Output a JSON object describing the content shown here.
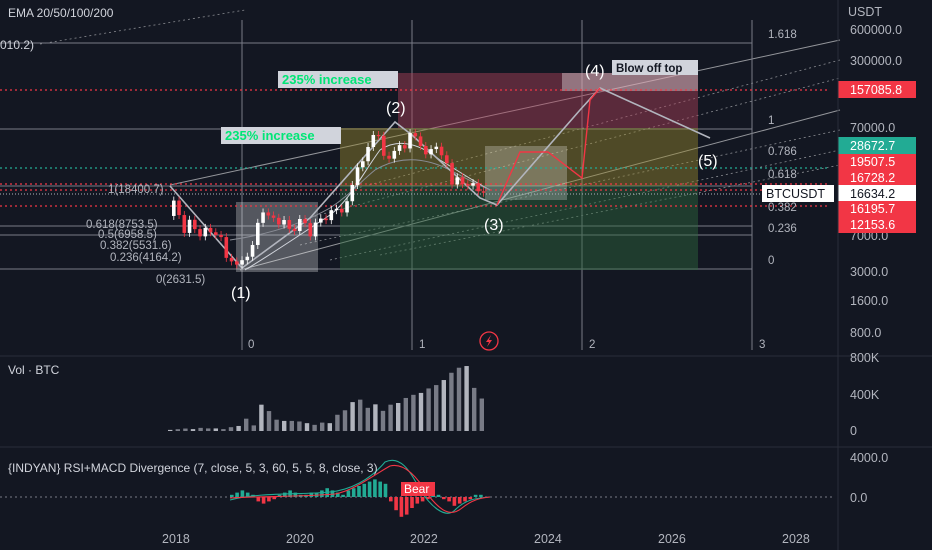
{
  "header": {
    "ema_label": "EMA 20/50/100/200",
    "vol_label": "Vol · BTC",
    "indicator_label": "{INDYAN} RSI+MACD Divergence (7, close, 5, 3, 60, 5, 5, 8, close, 3)",
    "left_clip": "010.2)"
  },
  "price_axis": {
    "unit": "USDT",
    "ticks": [
      "600000.0",
      "300000.0",
      "70000.0",
      "7000.0",
      "3000.0",
      "1600.0",
      "800.0"
    ]
  },
  "price_tags": [
    {
      "text": "157085.8",
      "color": "#f23645"
    },
    {
      "text": "28672.7",
      "color": "#22ab94"
    },
    {
      "text": "19507.5",
      "color": "#f23645"
    },
    {
      "text": "16728.2",
      "color": "#f23645"
    },
    {
      "text": "BTCUSDT",
      "color": "#ffffff"
    },
    {
      "text": "16634.2",
      "color": "#ffffff"
    },
    {
      "text": "16195.7",
      "color": "#f23645"
    },
    {
      "text": "12153.6",
      "color": "#f23645"
    }
  ],
  "fib_right": [
    "1.618",
    "1",
    "0.786",
    "0.618",
    "0.382",
    "0.236",
    "0"
  ],
  "fib_left": [
    "1(18400.7)",
    "0.618(8753.5)",
    "0.5(6958.5)",
    "0.382(5531.6)",
    "0.236(4164.2)",
    "0(2631.5)"
  ],
  "time_fib": [
    "0",
    "1",
    "2",
    "3"
  ],
  "annotations": {
    "increase_1": "235% increase",
    "increase_2": "235% increase",
    "blow_off": "Blow off top",
    "bear": "Bear"
  },
  "waves": [
    "(1)",
    "(2)",
    "(3)",
    "(4)",
    "(5)"
  ],
  "vol_axis": [
    "800K",
    "400K",
    "0"
  ],
  "ind_axis": [
    "4000.0",
    "0.0"
  ],
  "x_axis": [
    "2018",
    "2020",
    "2022",
    "2024",
    "2026",
    "2028"
  ],
  "colors": {
    "background": "#131722",
    "up": "#ffffff",
    "down": "#f23645",
    "green": "#22ab94",
    "label_green": "#00e676"
  },
  "chart_data": {
    "type": "candlestick",
    "symbol": "BTCUSDT",
    "scale": "log",
    "last_price": 16634.2,
    "wave_targets": {
      "wave_4_target": 157085.8
    },
    "candles": [
      [
        10000,
        14000
      ],
      [
        14000,
        10200
      ],
      [
        10200,
        6900
      ],
      [
        6900,
        9200
      ],
      [
        9200,
        7500
      ],
      [
        7500,
        6400
      ],
      [
        6400,
        7700
      ],
      [
        7700,
        7000
      ],
      [
        7000,
        6600
      ],
      [
        6600,
        6300
      ],
      [
        6300,
        4000
      ],
      [
        4000,
        3700
      ],
      [
        3700,
        3450
      ],
      [
        3450,
        3800
      ],
      [
        3800,
        4100
      ],
      [
        4100,
        5300
      ],
      [
        5300,
        8600
      ],
      [
        8600,
        10800
      ],
      [
        10800,
        10100
      ],
      [
        10100,
        9600
      ],
      [
        9600,
        8300
      ],
      [
        8300,
        9150
      ],
      [
        9150,
        7550
      ],
      [
        7550,
        7200
      ],
      [
        7200,
        9350
      ],
      [
        9350,
        8550
      ],
      [
        8550,
        6400
      ],
      [
        6400,
        8650
      ],
      [
        8650,
        9450
      ],
      [
        9450,
        9130
      ],
      [
        9130,
        11350
      ],
      [
        11350,
        11700
      ],
      [
        11700,
        10800
      ],
      [
        10800,
        13800
      ],
      [
        13800,
        19700
      ],
      [
        19700,
        29000
      ],
      [
        29000,
        33100
      ],
      [
        33100,
        45200
      ],
      [
        45200,
        58800
      ],
      [
        58800,
        57700
      ],
      [
        57700,
        37300
      ],
      [
        37300,
        35000
      ],
      [
        35000,
        41500
      ],
      [
        41500,
        47100
      ],
      [
        47100,
        43800
      ],
      [
        43800,
        61300
      ],
      [
        61300,
        57000
      ],
      [
        57000,
        46200
      ],
      [
        46200,
        38500
      ],
      [
        38500,
        43200
      ],
      [
        43200,
        45500
      ],
      [
        45500,
        37700
      ],
      [
        37700,
        31800
      ],
      [
        31800,
        19900
      ],
      [
        19900,
        23300
      ],
      [
        23300,
        20050
      ],
      [
        20050,
        19430
      ],
      [
        19430,
        20500
      ],
      [
        20500,
        17150
      ],
      [
        17150,
        16634
      ]
    ],
    "volume": [
      [
        0,
        0.02
      ],
      [
        0.01,
        0.03
      ],
      [
        0.02,
        0.04
      ],
      [
        0.02,
        0.03
      ],
      [
        0.03,
        0.05
      ],
      [
        0.03,
        0.04
      ],
      [
        0.03,
        0.04
      ],
      [
        0.02,
        0.03
      ],
      [
        0.04,
        0.06
      ],
      [
        0.05,
        0.08
      ],
      [
        0.15,
        0.19
      ],
      [
        0.25,
        0.05
      ],
      [
        0.35,
        0.4
      ],
      [
        0.38,
        0.28
      ],
      [
        0.41,
        0.12
      ],
      [
        0.4,
        0.1
      ],
      [
        0.3,
        0.12
      ],
      [
        0.35,
        0.1
      ],
      [
        0.3,
        0.08
      ],
      [
        0.25,
        0.06
      ],
      [
        0.25,
        0.1
      ],
      [
        0.3,
        0.08
      ],
      [
        0.35,
        0.22
      ],
      [
        0.25,
        0.32
      ],
      [
        0.28,
        0.46
      ],
      [
        0.3,
        0.5
      ],
      [
        0.32,
        0.35
      ],
      [
        0.28,
        0.42
      ],
      [
        0.3,
        0.3
      ],
      [
        0.35,
        0.4
      ],
      [
        0.4,
        0.42
      ],
      [
        0.45,
        0.5
      ],
      [
        0.48,
        0.55
      ],
      [
        0.5,
        0.58
      ],
      [
        0.55,
        0.65
      ],
      [
        0.6,
        0.7
      ],
      [
        0.65,
        0.78
      ],
      [
        0.7,
        0.9
      ],
      [
        0.75,
        0.98
      ],
      [
        0.8,
        1.0
      ],
      [
        0.85,
        0.6
      ],
      [
        0.9,
        0.4
      ]
    ]
  }
}
